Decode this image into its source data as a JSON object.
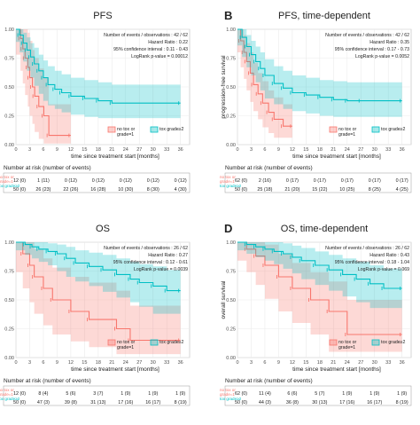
{
  "colors": {
    "red": "#f8766d",
    "teal": "#00bfc4",
    "panel_bg": "#ffffff",
    "grid": "#ebebeb",
    "axis_text": "#4d4d4d"
  },
  "chart_data": [
    {
      "panel_letter": "",
      "title": "PFS",
      "type": "line",
      "subtype": "kaplan-meier",
      "xlabel": "time since treatment start [months]",
      "ylabel": "",
      "xlim": [
        0,
        38
      ],
      "ylim": [
        0,
        1
      ],
      "xticks": [
        "0",
        "3",
        "6",
        "9",
        "12",
        "15",
        "18",
        "21",
        "24",
        "27",
        "30",
        "33",
        "36"
      ],
      "yticks": [
        "0.00",
        "0.25",
        "0.50",
        "0.75",
        "1.00"
      ],
      "stats": [
        "Number of events / observations :  42 / 62",
        "Hazard Ratio : 0.22",
        "95% confidence interval : 0.11 - 0.43",
        "LogRank p-value = 0.00012"
      ],
      "legend": [
        "no tox or\ngrade=1",
        "tox grade≥2"
      ],
      "series": [
        {
          "name": "no tox or grade=1",
          "x": [
            0,
            1,
            1.5,
            2,
            2.6,
            3,
            3.6,
            4.1,
            5,
            6.1,
            7.2,
            12
          ],
          "y": [
            1,
            0.92,
            0.83,
            0.75,
            0.67,
            0.58,
            0.5,
            0.42,
            0.33,
            0.25,
            0.08,
            0.08
          ],
          "lower": [
            1,
            0.78,
            0.64,
            0.53,
            0.43,
            0.33,
            0.25,
            0.18,
            0.11,
            0.05,
            0.01,
            0.01
          ],
          "upper": [
            1,
            1,
            1,
            1,
            0.97,
            0.9,
            0.82,
            0.75,
            0.66,
            0.58,
            0.35,
            0.35
          ]
        },
        {
          "name": "tox grade≥2",
          "x": [
            0,
            0.8,
            1.6,
            2.4,
            3.2,
            4,
            5,
            6,
            7,
            8.5,
            10,
            12,
            15,
            18,
            21,
            36
          ],
          "y": [
            1,
            0.95,
            0.88,
            0.82,
            0.76,
            0.7,
            0.64,
            0.58,
            0.52,
            0.48,
            0.45,
            0.42,
            0.4,
            0.38,
            0.36,
            0.36
          ],
          "lower": [
            1,
            0.89,
            0.8,
            0.72,
            0.64,
            0.58,
            0.51,
            0.44,
            0.38,
            0.34,
            0.31,
            0.28,
            0.26,
            0.24,
            0.23,
            0.23
          ],
          "upper": [
            1,
            1,
            0.97,
            0.93,
            0.88,
            0.84,
            0.78,
            0.73,
            0.68,
            0.64,
            0.61,
            0.58,
            0.56,
            0.54,
            0.52,
            0.52
          ]
        }
      ],
      "risk_title": "Number at risk (number of events)",
      "risk_labels": [
        "no tox or\ngrade=1",
        "tox grade≥2"
      ],
      "risk_rows": [
        [
          "12 (0)",
          "1 (11)",
          "0 (12)",
          "0 (12)",
          "0 (12)",
          "0 (12)",
          "0 (12)"
        ],
        [
          "50 (0)",
          "26 (23)",
          "22 (26)",
          "16 (28)",
          "10 (30)",
          "8 (30)",
          "4 (30)"
        ]
      ]
    },
    {
      "panel_letter": "B",
      "title": "PFS, time-dependent",
      "type": "line",
      "subtype": "kaplan-meier",
      "xlabel": "time since treatment start [months]",
      "ylabel": "progression-free survival",
      "xlim": [
        0,
        38
      ],
      "ylim": [
        0,
        1
      ],
      "xticks": [
        "0",
        "3",
        "6",
        "9",
        "12",
        "15",
        "18",
        "21",
        "24",
        "27",
        "30",
        "33",
        "36"
      ],
      "yticks": [
        "0.00",
        "0.25",
        "0.50",
        "0.75",
        "1.00"
      ],
      "stats": [
        "Number of events / observations :  42 / 62",
        "Hazard Ratio : 0.35",
        "95% confidence interval : 0.17 - 0.73",
        "LogRank p-value = 0.0052"
      ],
      "legend": [
        "no tox or\ngrade=1",
        "tox grade≥2"
      ],
      "series": [
        {
          "name": "no tox or grade=1",
          "x": [
            0,
            0.7,
            1.4,
            2,
            2.8,
            3.5,
            4.5,
            5.5,
            6.8,
            8,
            10,
            12
          ],
          "y": [
            1,
            0.9,
            0.8,
            0.72,
            0.62,
            0.52,
            0.44,
            0.36,
            0.28,
            0.22,
            0.16,
            0.16
          ],
          "lower": [
            1,
            0.8,
            0.67,
            0.57,
            0.47,
            0.37,
            0.29,
            0.22,
            0.15,
            0.1,
            0.06,
            0.06
          ],
          "upper": [
            1,
            1,
            0.95,
            0.88,
            0.8,
            0.71,
            0.62,
            0.55,
            0.47,
            0.41,
            0.35,
            0.35
          ]
        },
        {
          "name": "tox grade≥2",
          "x": [
            0,
            1,
            2,
            3,
            4,
            5,
            6,
            8,
            10,
            12,
            15,
            18,
            21,
            24,
            27,
            36
          ],
          "y": [
            1,
            0.93,
            0.85,
            0.78,
            0.72,
            0.66,
            0.6,
            0.53,
            0.49,
            0.45,
            0.43,
            0.41,
            0.39,
            0.38,
            0.38,
            0.38
          ],
          "lower": [
            1,
            0.86,
            0.76,
            0.67,
            0.6,
            0.54,
            0.47,
            0.4,
            0.35,
            0.31,
            0.29,
            0.27,
            0.25,
            0.24,
            0.24,
            0.24
          ],
          "upper": [
            1,
            1,
            0.95,
            0.9,
            0.85,
            0.8,
            0.74,
            0.68,
            0.64,
            0.6,
            0.58,
            0.56,
            0.55,
            0.54,
            0.54,
            0.54
          ]
        }
      ],
      "risk_title": "Number at risk (number of events)",
      "risk_labels": [
        "no tox or\ngrade=1",
        "tox grade≥2"
      ],
      "risk_rows": [
        [
          "62 (0)",
          "2 (16)",
          "0 (17)",
          "0 (17)",
          "0 (17)",
          "0 (17)",
          "0 (17)"
        ],
        [
          "50 (0)",
          "25 (18)",
          "21 (20)",
          "15 (22)",
          "10 (25)",
          "8 (25)",
          "4 (25)"
        ]
      ]
    },
    {
      "panel_letter": "",
      "title": "OS",
      "type": "line",
      "subtype": "kaplan-meier",
      "xlabel": "time since treatment start [months]",
      "ylabel": "",
      "xlim": [
        0,
        38
      ],
      "ylim": [
        0,
        1
      ],
      "xticks": [
        "0",
        "3",
        "6",
        "9",
        "12",
        "15",
        "18",
        "21",
        "24",
        "27",
        "30",
        "33",
        "36"
      ],
      "yticks": [
        "0.00",
        "0.25",
        "0.50",
        "0.75",
        "1.00"
      ],
      "stats": [
        "Number of events / observations :  26 / 62",
        "Hazard Ratio : 0.27",
        "95% confidence interval : 0.12 - 0.61",
        "LogRank p-value = 0.0039"
      ],
      "legend": [
        "no tox or\ngrade=1",
        "tox grade≥2"
      ],
      "series": [
        {
          "name": "no tox or grade=1",
          "x": [
            0,
            1.5,
            3,
            4,
            6,
            8,
            12,
            16,
            22,
            25,
            36
          ],
          "y": [
            1,
            0.9,
            0.8,
            0.7,
            0.6,
            0.5,
            0.4,
            0.33,
            0.25,
            0.15,
            0.15
          ],
          "lower": [
            1,
            0.74,
            0.6,
            0.48,
            0.38,
            0.28,
            0.2,
            0.14,
            0.09,
            0.03,
            0.03
          ],
          "upper": [
            1,
            1,
            1,
            0.94,
            0.86,
            0.78,
            0.7,
            0.65,
            0.58,
            0.45,
            0.45
          ]
        },
        {
          "name": "tox grade≥2",
          "x": [
            0,
            2,
            3.5,
            5,
            7,
            9,
            11,
            13,
            16,
            19,
            22,
            25,
            27,
            30,
            33,
            36
          ],
          "y": [
            1,
            0.98,
            0.96,
            0.94,
            0.92,
            0.9,
            0.86,
            0.82,
            0.79,
            0.76,
            0.72,
            0.68,
            0.65,
            0.62,
            0.58,
            0.58
          ],
          "lower": [
            1,
            0.93,
            0.89,
            0.86,
            0.83,
            0.8,
            0.75,
            0.7,
            0.66,
            0.62,
            0.57,
            0.52,
            0.48,
            0.44,
            0.38,
            0.38
          ],
          "upper": [
            1,
            1,
            1,
            1,
            0.99,
            0.98,
            0.96,
            0.93,
            0.91,
            0.89,
            0.86,
            0.83,
            0.81,
            0.79,
            0.76,
            0.76
          ]
        }
      ],
      "risk_title": "Number at risk (number of events)",
      "risk_labels": [
        "no tox or\ngrade=1",
        "tox grade≥2"
      ],
      "risk_rows": [
        [
          "12 (0)",
          "8 (4)",
          "5 (6)",
          "3 (7)",
          "1 (9)",
          "1 (9)",
          "1 (9)"
        ],
        [
          "50 (0)",
          "47 (3)",
          "39 (8)",
          "31 (13)",
          "17 (16)",
          "16 (17)",
          "8 (19)"
        ]
      ]
    },
    {
      "panel_letter": "D",
      "title": "OS, time-dependent",
      "type": "line",
      "subtype": "kaplan-meier",
      "xlabel": "time since treatment start [months]",
      "ylabel": "overall survival",
      "xlim": [
        0,
        38
      ],
      "ylim": [
        0,
        1
      ],
      "xticks": [
        "0",
        "3",
        "6",
        "9",
        "12",
        "15",
        "18",
        "21",
        "24",
        "27",
        "30",
        "33",
        "36"
      ],
      "yticks": [
        "0.00",
        "0.25",
        "0.50",
        "0.75",
        "1.00"
      ],
      "stats": [
        "Number of events / observations :  26 / 62",
        "Hazard Ratio : 0.43",
        "95% confidence interval : 0.18 - 1.04",
        "LogRank p-value = 0.069"
      ],
      "legend": [
        "no tox or\ngrade=1",
        "tox grade≥2"
      ],
      "series": [
        {
          "name": "no tox or grade=1",
          "x": [
            0,
            2,
            4,
            6,
            9,
            12,
            16,
            20,
            24,
            36
          ],
          "y": [
            1,
            0.94,
            0.88,
            0.8,
            0.7,
            0.6,
            0.5,
            0.4,
            0.2,
            0.2
          ],
          "lower": [
            1,
            0.84,
            0.74,
            0.63,
            0.51,
            0.4,
            0.3,
            0.2,
            0.05,
            0.05
          ],
          "upper": [
            1,
            1,
            1,
            0.98,
            0.9,
            0.82,
            0.74,
            0.66,
            0.5,
            0.5
          ]
        },
        {
          "name": "tox grade≥2",
          "x": [
            0,
            2,
            4,
            6,
            8,
            10,
            12,
            14,
            17,
            20,
            23,
            26,
            29,
            32,
            36
          ],
          "y": [
            1,
            0.98,
            0.96,
            0.94,
            0.92,
            0.9,
            0.87,
            0.84,
            0.8,
            0.76,
            0.72,
            0.68,
            0.64,
            0.6,
            0.6
          ],
          "lower": [
            1,
            0.93,
            0.9,
            0.87,
            0.84,
            0.81,
            0.77,
            0.73,
            0.68,
            0.63,
            0.58,
            0.53,
            0.48,
            0.43,
            0.43
          ],
          "upper": [
            1,
            1,
            1,
            1,
            1,
            0.99,
            0.97,
            0.95,
            0.92,
            0.89,
            0.86,
            0.83,
            0.8,
            0.77,
            0.77
          ]
        }
      ],
      "risk_title": "Number at risk (number of events)",
      "risk_labels": [
        "no tox or\ngrade=1",
        "tox grade≥2"
      ],
      "risk_rows": [
        [
          "62 (0)",
          "11 (4)",
          "6 (6)",
          "5 (7)",
          "1 (9)",
          "1 (9)",
          "1 (9)"
        ],
        [
          "50 (0)",
          "44 (3)",
          "36 (8)",
          "30 (13)",
          "17 (16)",
          "16 (17)",
          "8 (19)"
        ]
      ]
    }
  ]
}
